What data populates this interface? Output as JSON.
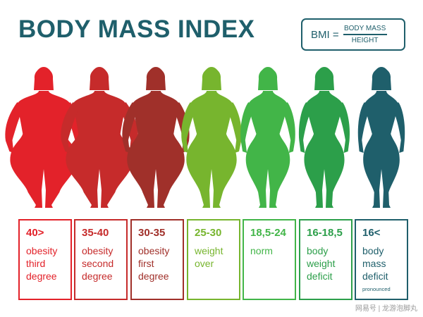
{
  "title": "BODY MASS INDEX",
  "formula": {
    "lhs": "BMI =",
    "numerator": "BODY MASS",
    "denominator": "HEIGHT"
  },
  "categories": [
    {
      "range": "40>",
      "lines": [
        "obesity",
        "third",
        "degree"
      ],
      "color": "#e3222a",
      "figure": "heavy"
    },
    {
      "range": "35-40",
      "lines": [
        "obesity",
        "second",
        "degree"
      ],
      "color": "#c62b2b",
      "figure": "heavy"
    },
    {
      "range": "30-35",
      "lines": [
        "obesity",
        "first",
        "degree"
      ],
      "color": "#a0302a",
      "figure": "medium-heavy"
    },
    {
      "range": "25-30",
      "lines": [
        "weight",
        "over"
      ],
      "color": "#77b52e",
      "figure": "medium"
    },
    {
      "range": "18,5-24",
      "lines": [
        "norm"
      ],
      "color": "#42b548",
      "figure": "normal"
    },
    {
      "range": "16-18,5",
      "lines": [
        "body",
        "weight",
        "deficit"
      ],
      "color": "#2c9f4a",
      "figure": "thin"
    },
    {
      "range": "16<",
      "lines": [
        "body",
        "mass",
        "deficit"
      ],
      "note": "pronounced",
      "color": "#1f5f6b",
      "text_color": "#1f5f6b",
      "figure": "very-thin"
    }
  ],
  "watermark": "网易号 | 龙游泡脚丸"
}
